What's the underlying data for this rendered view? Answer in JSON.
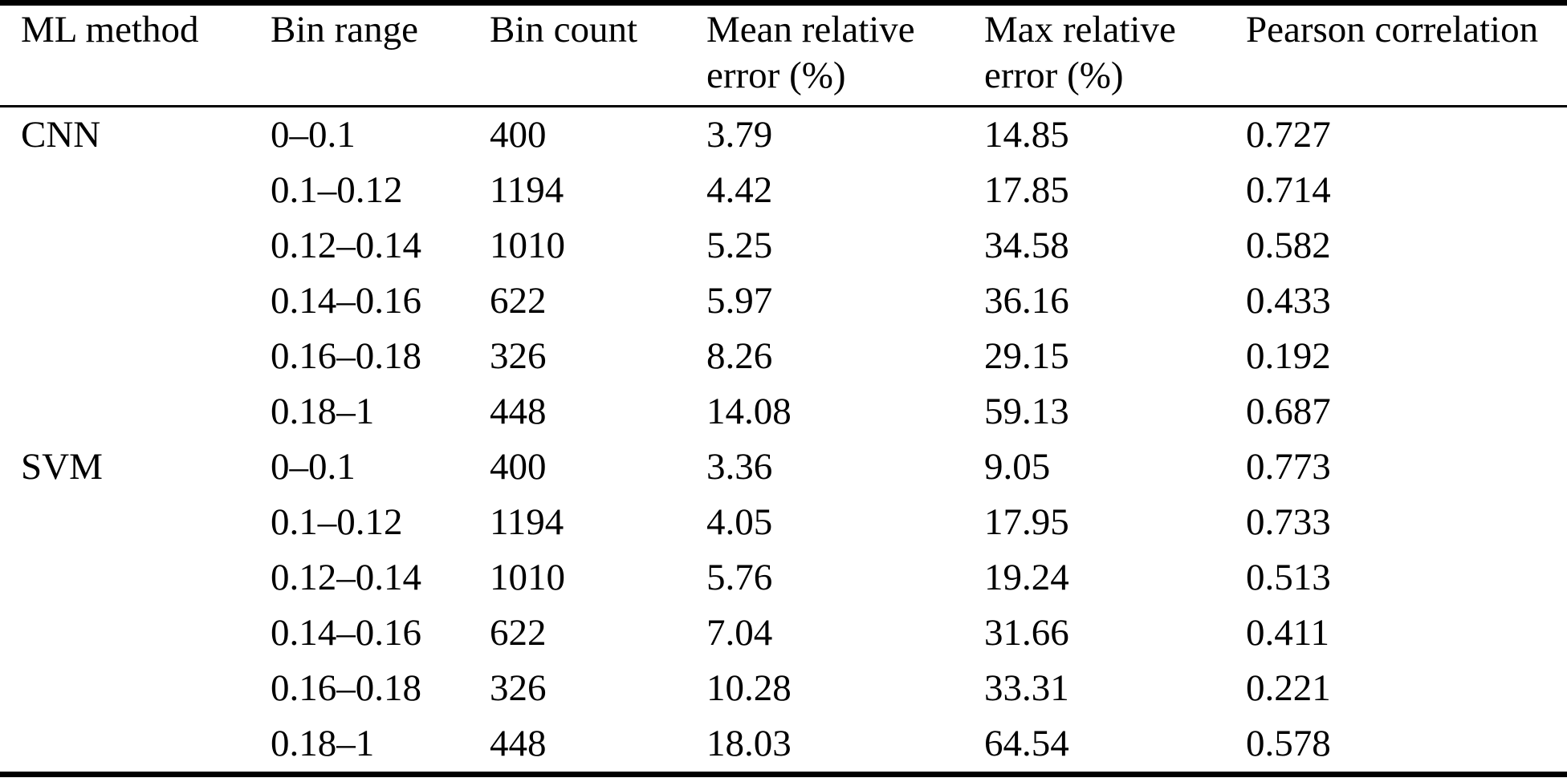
{
  "table": {
    "columns": [
      {
        "label": "ML method"
      },
      {
        "label": "Bin range"
      },
      {
        "label": "Bin count"
      },
      {
        "label": "Mean relative error (%)"
      },
      {
        "label": "Max relative error (%)"
      },
      {
        "label": "Pearson correlation"
      }
    ],
    "rows": [
      {
        "method": "CNN",
        "bin_range": "0–0.1",
        "bin_count": "400",
        "mean_relative_error": "3.79",
        "max_relative_error": "14.85",
        "pearson_correlation": "0.727"
      },
      {
        "method": "",
        "bin_range": "0.1–0.12",
        "bin_count": "1194",
        "mean_relative_error": "4.42",
        "max_relative_error": "17.85",
        "pearson_correlation": "0.714"
      },
      {
        "method": "",
        "bin_range": "0.12–0.14",
        "bin_count": "1010",
        "mean_relative_error": "5.25",
        "max_relative_error": "34.58",
        "pearson_correlation": "0.582"
      },
      {
        "method": "",
        "bin_range": "0.14–0.16",
        "bin_count": "622",
        "mean_relative_error": "5.97",
        "max_relative_error": "36.16",
        "pearson_correlation": "0.433"
      },
      {
        "method": "",
        "bin_range": "0.16–0.18",
        "bin_count": "326",
        "mean_relative_error": "8.26",
        "max_relative_error": "29.15",
        "pearson_correlation": "0.192"
      },
      {
        "method": "",
        "bin_range": "0.18–1",
        "bin_count": "448",
        "mean_relative_error": "14.08",
        "max_relative_error": "59.13",
        "pearson_correlation": "0.687"
      },
      {
        "method": "SVM",
        "bin_range": "0–0.1",
        "bin_count": "400",
        "mean_relative_error": "3.36",
        "max_relative_error": "9.05",
        "pearson_correlation": "0.773"
      },
      {
        "method": "",
        "bin_range": "0.1–0.12",
        "bin_count": "1194",
        "mean_relative_error": "4.05",
        "max_relative_error": "17.95",
        "pearson_correlation": "0.733"
      },
      {
        "method": "",
        "bin_range": "0.12–0.14",
        "bin_count": "1010",
        "mean_relative_error": "5.76",
        "max_relative_error": "19.24",
        "pearson_correlation": "0.513"
      },
      {
        "method": "",
        "bin_range": "0.14–0.16",
        "bin_count": "622",
        "mean_relative_error": "7.04",
        "max_relative_error": "31.66",
        "pearson_correlation": "0.411"
      },
      {
        "method": "",
        "bin_range": "0.16–0.18",
        "bin_count": "326",
        "mean_relative_error": "10.28",
        "max_relative_error": "33.31",
        "pearson_correlation": "0.221"
      },
      {
        "method": "",
        "bin_range": "0.18–1",
        "bin_count": "448",
        "mean_relative_error": "18.03",
        "max_relative_error": "64.54",
        "pearson_correlation": "0.578"
      }
    ]
  }
}
